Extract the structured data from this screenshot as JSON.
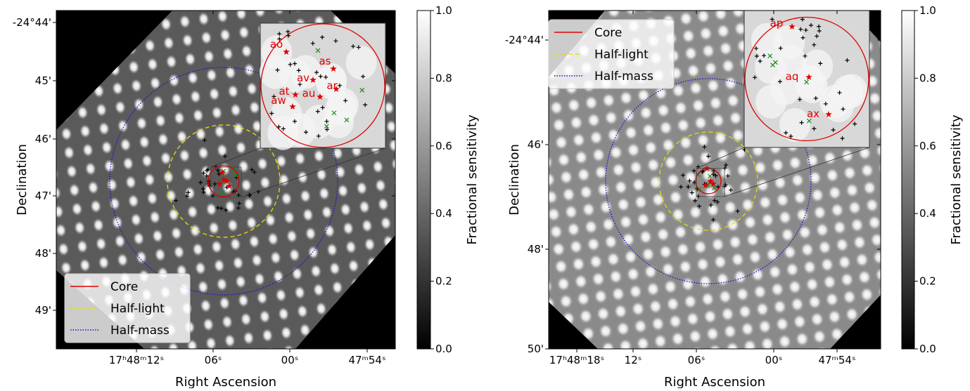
{
  "chart_data": [
    {
      "type": "sky_map",
      "xlabel": "Right Ascension",
      "ylabel": "Declination",
      "xticks": [
        "17ʰ48ᵐ12ˢ",
        "06ˢ",
        "00ˢ",
        "47ᵐ54ˢ"
      ],
      "yticks": [
        "-24°44'",
        "45'",
        "46'",
        "47'",
        "48'",
        "49'"
      ],
      "legend": [
        {
          "name": "Core",
          "color": "#e00000",
          "dash": ""
        },
        {
          "name": "Half-light",
          "color": "#e8e000",
          "dash": "6,4"
        },
        {
          "name": "Half-mass",
          "color": "#1010d0",
          "dash": "1.5,2"
        }
      ],
      "legend_loc": "lower left",
      "colorbar": {
        "label": "Fractional sensitivity",
        "lim": [
          0,
          1
        ],
        "ticks": [
          {
            "value": 0,
            "label": "0.0"
          },
          {
            "value": 0.2,
            "label": "0.2"
          },
          {
            "value": 0.4,
            "label": "0.4"
          },
          {
            "value": 0.6,
            "label": "0.6"
          },
          {
            "value": 0.8,
            "label": "0.8"
          },
          {
            "value": 1,
            "label": "1.0"
          }
        ]
      },
      "sources": [
        "ao",
        "as",
        "av",
        "ar",
        "at",
        "au",
        "aw"
      ]
    },
    {
      "type": "sky_map",
      "xlabel": "Right Ascension",
      "ylabel": "Declination",
      "xticks": [
        "17ʰ48ᵐ18ˢ",
        "12ˢ",
        "06ˢ",
        "00ˢ",
        "47ᵐ54ˢ"
      ],
      "yticks": [
        "-24°44'",
        "46'",
        "48'",
        "50'"
      ],
      "legend": [
        {
          "name": "Core",
          "color": "#e00000",
          "dash": ""
        },
        {
          "name": "Half-light",
          "color": "#e8e000",
          "dash": "6,4"
        },
        {
          "name": "Half-mass",
          "color": "#1010d0",
          "dash": "1.5,2"
        }
      ],
      "legend_loc": "upper left",
      "colorbar": {
        "label": "Fractional sensitivity",
        "lim": [
          0,
          1
        ],
        "ticks": [
          {
            "value": 0,
            "label": "0.0"
          },
          {
            "value": 0.2,
            "label": "0.2"
          },
          {
            "value": 0.4,
            "label": "0.4"
          },
          {
            "value": 0.6,
            "label": "0.6"
          },
          {
            "value": 0.8,
            "label": "0.8"
          },
          {
            "value": 1,
            "label": "1.0"
          }
        ]
      },
      "sources": [
        "ap",
        "aq",
        "ax"
      ]
    }
  ]
}
